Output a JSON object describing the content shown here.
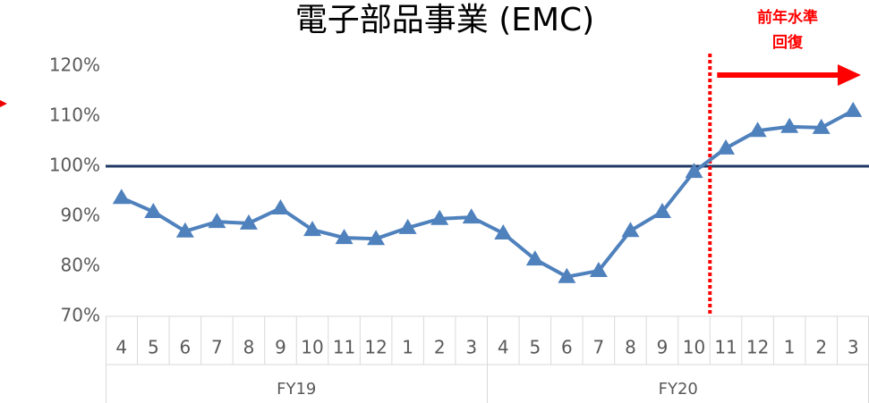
{
  "chart_data": {
    "type": "line",
    "title": "電子部品事業 (EMC)",
    "groups": [
      {
        "name": "FY19",
        "categories": [
          "4",
          "5",
          "6",
          "7",
          "8",
          "9",
          "10",
          "11",
          "12",
          "1",
          "2",
          "3"
        ]
      },
      {
        "name": "FY20",
        "categories": [
          "4",
          "5",
          "6",
          "7",
          "8",
          "9",
          "10",
          "11",
          "12",
          "1",
          "2",
          "3"
        ]
      }
    ],
    "series": [
      {
        "name": "EMC",
        "color": "#4f81bd",
        "values": [
          93.7,
          90.9,
          87.0,
          88.9,
          88.6,
          91.6,
          87.3,
          85.7,
          85.5,
          87.7,
          89.5,
          89.8,
          86.6,
          81.4,
          77.9,
          79.1,
          87.1,
          90.9,
          98.9,
          103.6,
          107.1,
          107.9,
          107.7,
          111.1
        ]
      }
    ],
    "ylim": [
      70,
      120
    ],
    "yticks": [
      {
        "value": 70,
        "label": "70%"
      },
      {
        "value": 80,
        "label": "80%"
      },
      {
        "value": 90,
        "label": "90%"
      },
      {
        "value": 100,
        "label": "100%"
      },
      {
        "value": 110,
        "label": "110%"
      },
      {
        "value": 120,
        "label": "120%"
      }
    ],
    "reference_line": {
      "value": 100,
      "color": "#1f3864"
    },
    "annotation": [
      "前年水準",
      "回復"
    ]
  }
}
